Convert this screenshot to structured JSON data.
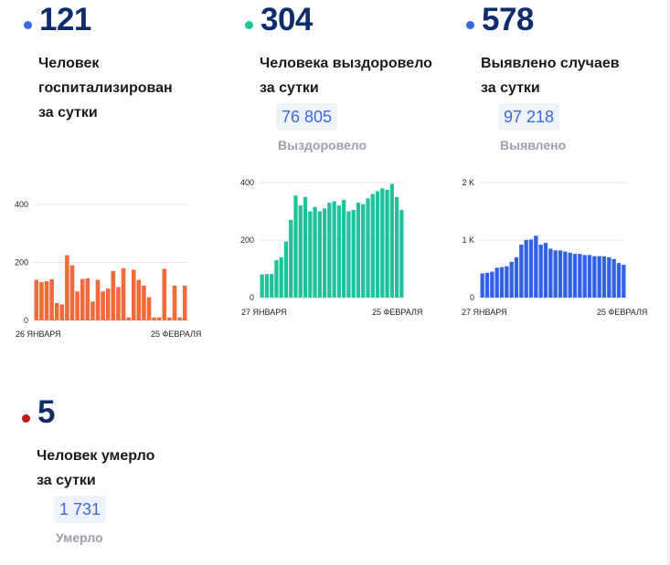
{
  "stats": {
    "hospitalized": {
      "number": "121",
      "label_line1": "Человек",
      "label_line2": "госпитализирован",
      "label_line3": "за сутки",
      "dot_color": "#3b6ad8"
    },
    "recovered": {
      "number": "304",
      "label_line1": "Человека выздоровело",
      "label_line2": "за сутки",
      "total": "76 805",
      "total_caption": "Выздоровело",
      "dot_color": "#1fc29a"
    },
    "detected": {
      "number": "578",
      "label_line1": "Выявлено случаев",
      "label_line2": "за сутки",
      "total": "97 218",
      "total_caption": "Выявлено",
      "dot_color": "#3b6ad8"
    },
    "died": {
      "number": "5",
      "label_line1": "Человек умерло",
      "label_line2": "за сутки",
      "total": "1 731",
      "total_caption": "Умерло",
      "dot_color": "#c0151b"
    }
  },
  "chart_data": [
    {
      "type": "bar",
      "color": "#f26a3c",
      "ylim": [
        0,
        400
      ],
      "yticks": [
        "0",
        "200",
        "400"
      ],
      "x_start_label": "26 ЯНВАРЯ",
      "x_end_label": "25 ФЕВРАЛЯ",
      "values": [
        140,
        132,
        135,
        142,
        60,
        55,
        225,
        190,
        100,
        143,
        145,
        65,
        140,
        100,
        110,
        170,
        115,
        180,
        10,
        175,
        140,
        120,
        80,
        10,
        10,
        178,
        10,
        120,
        10,
        120
      ]
    },
    {
      "type": "bar",
      "color": "#1fc29a",
      "ylim": [
        0,
        400
      ],
      "yticks": [
        "0",
        "200",
        "400"
      ],
      "x_start_label": "27 ЯНВАРЯ",
      "x_end_label": "25 ФЕВРАЛЯ",
      "values": [
        80,
        82,
        82,
        130,
        140,
        195,
        270,
        355,
        320,
        350,
        300,
        315,
        300,
        310,
        330,
        335,
        320,
        340,
        300,
        305,
        330,
        325,
        345,
        360,
        370,
        380,
        375,
        395,
        350,
        305
      ]
    },
    {
      "type": "bar",
      "color": "#3262e4",
      "ylim": [
        0,
        2000
      ],
      "yticks": [
        "0",
        "1 K",
        "2 K"
      ],
      "x_start_label": "27 ЯНВАРЯ",
      "x_end_label": "25 ФЕВРАЛЯ",
      "values": [
        420,
        430,
        450,
        520,
        530,
        545,
        620,
        700,
        920,
        1000,
        1010,
        1075,
        920,
        950,
        850,
        820,
        820,
        800,
        780,
        760,
        760,
        740,
        740,
        720,
        720,
        715,
        700,
        670,
        600,
        570
      ]
    }
  ]
}
